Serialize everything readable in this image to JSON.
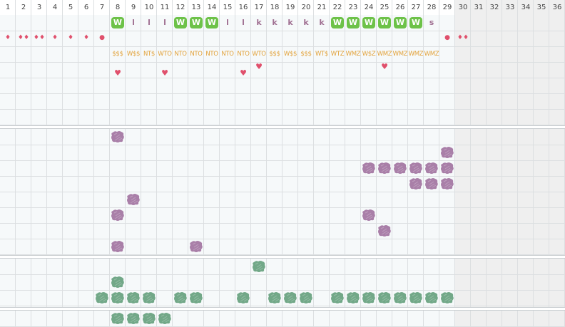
{
  "header": {
    "days": [
      "1",
      "2",
      "3",
      "4",
      "5",
      "6",
      "7",
      "8",
      "9",
      "10",
      "11",
      "12",
      "13",
      "14",
      "15",
      "16",
      "17",
      "18",
      "19",
      "20",
      "21",
      "22",
      "23",
      "24",
      "25",
      "26",
      "27",
      "28",
      "29",
      "30",
      "31",
      "32",
      "33",
      "34",
      "35",
      "36"
    ]
  },
  "colors": {
    "grid_bg": "#f6f9fa",
    "grid_line": "#dcdfe1",
    "shade": "#efefef",
    "green_badge": "#6dc248",
    "letter": "#a07092",
    "tag": "#e2a23a",
    "heart": "#e0506c",
    "purple_blob": "#a97fa8",
    "green_blob": "#72a888"
  },
  "row_markers": {
    "drops": [
      {
        "day": 1,
        "glyph": "♦"
      },
      {
        "day": 2,
        "glyph": "♦♦"
      },
      {
        "day": 3,
        "glyph": "♦♦"
      },
      {
        "day": 4,
        "glyph": "♦"
      },
      {
        "day": 5,
        "glyph": "♦"
      },
      {
        "day": 6,
        "glyph": "♦"
      },
      {
        "day": 7,
        "glyph": "●"
      },
      {
        "day": 29,
        "glyph": "●"
      },
      {
        "day": 30,
        "glyph": "♦♦"
      }
    ],
    "letters": [
      {
        "day": 8,
        "text": "W",
        "badge": true
      },
      {
        "day": 9,
        "text": "l",
        "badge": false
      },
      {
        "day": 10,
        "text": "l",
        "badge": false
      },
      {
        "day": 11,
        "text": "l",
        "badge": false
      },
      {
        "day": 12,
        "text": "W",
        "badge": true
      },
      {
        "day": 13,
        "text": "W",
        "badge": true
      },
      {
        "day": 14,
        "text": "W",
        "badge": true
      },
      {
        "day": 15,
        "text": "l",
        "badge": false
      },
      {
        "day": 16,
        "text": "l",
        "badge": false
      },
      {
        "day": 17,
        "text": "k",
        "badge": false
      },
      {
        "day": 18,
        "text": "k",
        "badge": false
      },
      {
        "day": 19,
        "text": "k",
        "badge": false
      },
      {
        "day": 20,
        "text": "k",
        "badge": false
      },
      {
        "day": 21,
        "text": "k",
        "badge": false
      },
      {
        "day": 22,
        "text": "W",
        "badge": true
      },
      {
        "day": 23,
        "text": "W",
        "badge": true
      },
      {
        "day": 24,
        "text": "W",
        "badge": true
      },
      {
        "day": 25,
        "text": "W",
        "badge": true
      },
      {
        "day": 26,
        "text": "W",
        "badge": true
      },
      {
        "day": 27,
        "text": "W",
        "badge": true
      },
      {
        "day": 28,
        "text": "s",
        "badge": false
      }
    ],
    "tags": [
      {
        "day": 8,
        "text": "$$$"
      },
      {
        "day": 9,
        "text": "W$$"
      },
      {
        "day": 10,
        "text": "NT$"
      },
      {
        "day": 11,
        "text": "WTO"
      },
      {
        "day": 12,
        "text": "NTO"
      },
      {
        "day": 13,
        "text": "NTO"
      },
      {
        "day": 14,
        "text": "NTO"
      },
      {
        "day": 15,
        "text": "NTO"
      },
      {
        "day": 16,
        "text": "NTO"
      },
      {
        "day": 17,
        "text": "WTO"
      },
      {
        "day": 18,
        "text": "$$$"
      },
      {
        "day": 19,
        "text": "W$$"
      },
      {
        "day": 20,
        "text": "$$$"
      },
      {
        "day": 21,
        "text": "WT$"
      },
      {
        "day": 22,
        "text": "WTZ"
      },
      {
        "day": 23,
        "text": "WMZ"
      },
      {
        "day": 24,
        "text": "W$Z"
      },
      {
        "day": 25,
        "text": "WMZ"
      },
      {
        "day": 26,
        "text": "WMZ"
      },
      {
        "day": 27,
        "text": "WMZ"
      },
      {
        "day": 28,
        "text": "WMZ"
      }
    ],
    "hearts": [
      {
        "day": 8,
        "level": "low"
      },
      {
        "day": 11,
        "level": "low"
      },
      {
        "day": 16,
        "level": "low"
      },
      {
        "day": 17,
        "level": "high"
      },
      {
        "day": 25,
        "level": "high"
      }
    ]
  },
  "purple_blobs": [
    {
      "day": 8,
      "row": 1
    },
    {
      "day": 29,
      "row": 2
    },
    {
      "day": 24,
      "row": 3
    },
    {
      "day": 25,
      "row": 3
    },
    {
      "day": 26,
      "row": 3
    },
    {
      "day": 27,
      "row": 3
    },
    {
      "day": 28,
      "row": 3
    },
    {
      "day": 29,
      "row": 3
    },
    {
      "day": 27,
      "row": 4
    },
    {
      "day": 28,
      "row": 4
    },
    {
      "day": 29,
      "row": 4
    },
    {
      "day": 9,
      "row": 5
    },
    {
      "day": 8,
      "row": 6
    },
    {
      "day": 24,
      "row": 6
    },
    {
      "day": 25,
      "row": 7
    },
    {
      "day": 8,
      "row": 8
    },
    {
      "day": 13,
      "row": 8
    }
  ],
  "green_blobs": [
    {
      "day": 17,
      "row": 1
    },
    {
      "day": 8,
      "row": 2
    },
    {
      "day": 7,
      "row": 3
    },
    {
      "day": 8,
      "row": 3
    },
    {
      "day": 9,
      "row": 3
    },
    {
      "day": 10,
      "row": 3
    },
    {
      "day": 12,
      "row": 3
    },
    {
      "day": 13,
      "row": 3
    },
    {
      "day": 16,
      "row": 3
    },
    {
      "day": 18,
      "row": 3
    },
    {
      "day": 19,
      "row": 3
    },
    {
      "day": 20,
      "row": 3
    },
    {
      "day": 22,
      "row": 3
    },
    {
      "day": 23,
      "row": 3
    },
    {
      "day": 24,
      "row": 3
    },
    {
      "day": 25,
      "row": 3
    },
    {
      "day": 26,
      "row": 3
    },
    {
      "day": 27,
      "row": 3
    },
    {
      "day": 28,
      "row": 3
    },
    {
      "day": 29,
      "row": 3
    }
  ],
  "green_blobs_bottom": [
    {
      "day": 8
    },
    {
      "day": 9
    },
    {
      "day": 10
    },
    {
      "day": 11
    }
  ]
}
